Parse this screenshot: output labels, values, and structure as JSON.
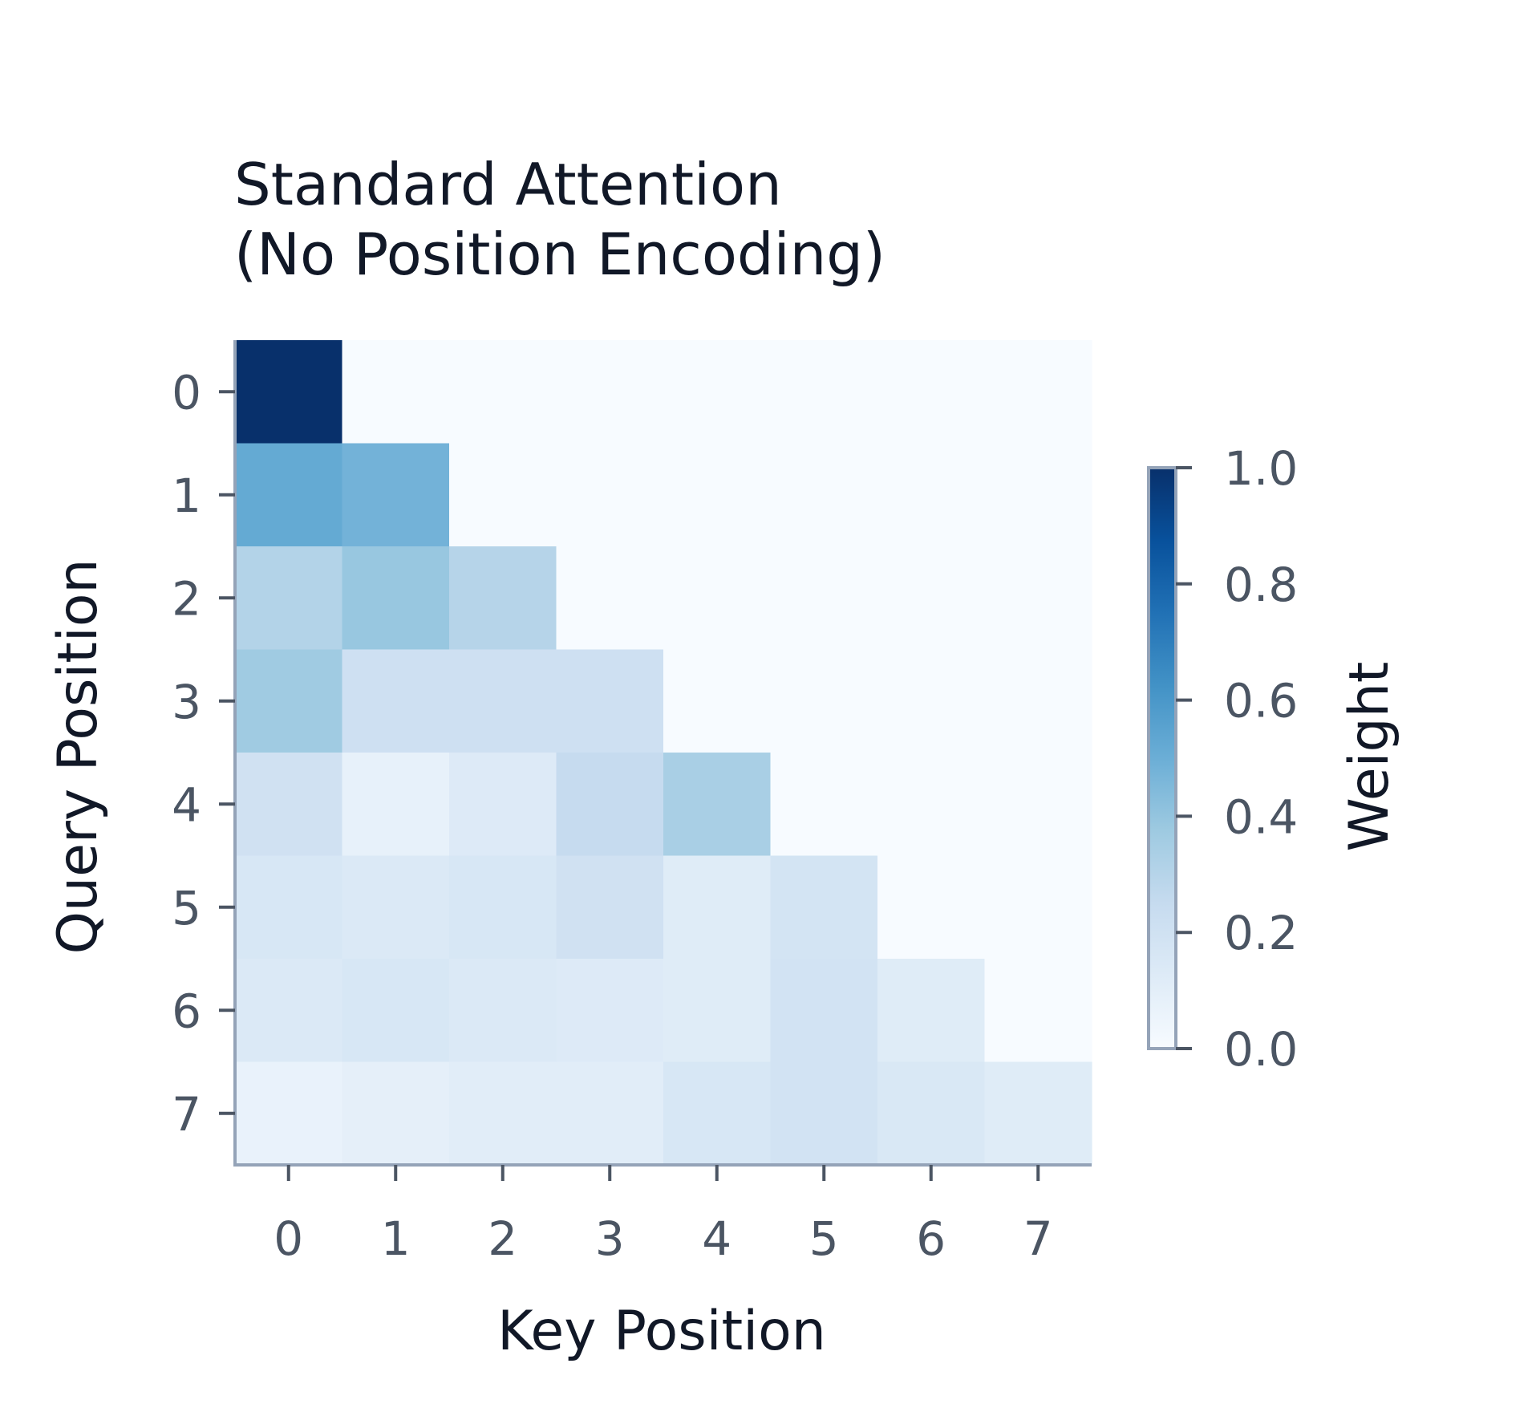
{
  "chart_data": {
    "type": "heatmap",
    "title_lines": [
      "Standard Attention",
      "(No Position Encoding)"
    ],
    "xlabel": "Key Position",
    "ylabel": "Query Position",
    "x_categories": [
      "0",
      "1",
      "2",
      "3",
      "4",
      "5",
      "6",
      "7"
    ],
    "y_categories": [
      "0",
      "1",
      "2",
      "3",
      "4",
      "5",
      "6",
      "7"
    ],
    "values": [
      [
        1.0,
        0.0,
        0.0,
        0.0,
        0.0,
        0.0,
        0.0,
        0.0
      ],
      [
        0.52,
        0.48,
        0.0,
        0.0,
        0.0,
        0.0,
        0.0,
        0.0
      ],
      [
        0.31,
        0.39,
        0.3,
        0.0,
        0.0,
        0.0,
        0.0,
        0.0
      ],
      [
        0.37,
        0.21,
        0.21,
        0.21,
        0.0,
        0.0,
        0.0,
        0.0
      ],
      [
        0.2,
        0.08,
        0.13,
        0.25,
        0.34,
        0.0,
        0.0,
        0.0
      ],
      [
        0.16,
        0.14,
        0.16,
        0.2,
        0.12,
        0.18,
        0.0,
        0.0
      ],
      [
        0.14,
        0.16,
        0.14,
        0.13,
        0.12,
        0.19,
        0.12,
        0.0
      ],
      [
        0.07,
        0.09,
        0.11,
        0.11,
        0.16,
        0.19,
        0.15,
        0.12
      ]
    ],
    "colorbar": {
      "label": "Weight",
      "min": 0.0,
      "max": 1.0,
      "ticks": [
        "0.0",
        "0.2",
        "0.4",
        "0.6",
        "0.8",
        "1.0"
      ]
    },
    "colormap": "Blues",
    "colormap_stops": [
      "#f7fbff",
      "#deebf7",
      "#c6dbef",
      "#9ecae1",
      "#6baed6",
      "#4292c6",
      "#2171b5",
      "#08519c",
      "#08306b"
    ],
    "axis_color": "#94a3b8"
  }
}
